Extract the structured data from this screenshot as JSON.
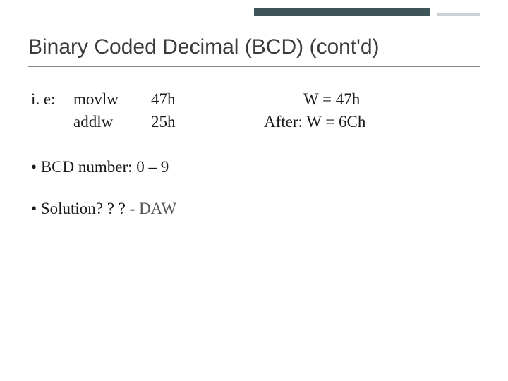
{
  "title": "Binary Coded Decimal (BCD) (cont'd)",
  "code": {
    "label": "i. e:",
    "op1": "movlw",
    "op2": "addlw",
    "arg1": "47h",
    "arg2": "25h",
    "result1": "W = 47h",
    "result2": "After: W = 6Ch"
  },
  "bullet1": "BCD number: 0 – 9",
  "bullet2_prefix": "Solution? ? ? - ",
  "bullet2_daw": "DAW",
  "colors": {
    "accent_dark": "#3d5558",
    "accent_light": "#c9d2d4",
    "title_text": "#3b3b3b",
    "body_text": "#1a1a1a",
    "daw_text": "#555555",
    "background": "#ffffff"
  },
  "fonts": {
    "title_family": "Verdana",
    "title_size_pt": 22,
    "body_family": "Georgia",
    "body_size_pt": 17
  }
}
